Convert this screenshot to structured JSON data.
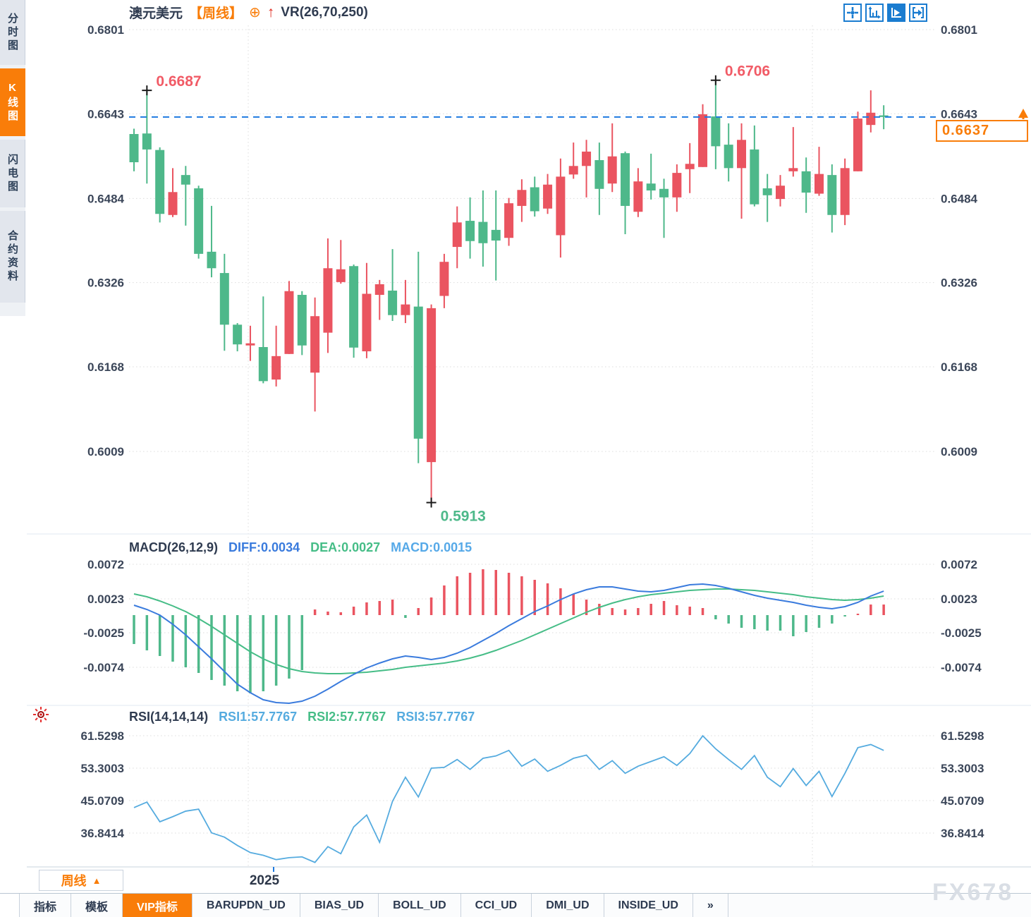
{
  "header": {
    "symbol": "澳元美元",
    "period_tag": "【周线】",
    "target_icon": "⊕",
    "up_arrow_icon": "↑",
    "vr_indicator": "VR(26,70,250)"
  },
  "sidebar": {
    "items": [
      {
        "label": "分时图",
        "active": false
      },
      {
        "label": "K线图",
        "active": true
      },
      {
        "label": "闪电图",
        "active": false
      },
      {
        "label": "合约资料",
        "active": false
      }
    ]
  },
  "toolbar_icons": [
    "pan-crosshair-icon",
    "axis-scale-icon",
    "axis-play-icon",
    "jump-latest-icon"
  ],
  "main_chart": {
    "y_ticks": [
      "0.6801",
      "0.6643",
      "0.6484",
      "0.6326",
      "0.6168",
      "0.6009"
    ],
    "x_tick": "2025",
    "last_price": "0.6637",
    "last_price_axis_label": "0.6643"
  },
  "macd_pane": {
    "title": "MACD(26,12,9)",
    "diff_label": "DIFF:0.0034",
    "dea_label": "DEA:0.0027",
    "macd_label": "MACD:0.0015",
    "y_ticks": [
      "0.0072",
      "0.0023",
      "-0.0025",
      "-0.0074"
    ]
  },
  "rsi_pane": {
    "title": "RSI(14,14,14)",
    "rsi1_label": "RSI1:57.7767",
    "rsi2_label": "RSI2:57.7767",
    "rsi3_label": "RSI3:57.7767",
    "y_ticks": [
      "61.5298",
      "53.3003",
      "45.0709",
      "36.8414"
    ]
  },
  "bottom": {
    "period_button": "周线",
    "period_arrow": "▲",
    "tabs": [
      {
        "label": "指标",
        "active": false
      },
      {
        "label": "模板",
        "active": false
      },
      {
        "label": "VIP指标",
        "active": true
      },
      {
        "label": "BARUPDN_UD",
        "active": false
      },
      {
        "label": "BIAS_UD",
        "active": false
      },
      {
        "label": "BOLL_UD",
        "active": false
      },
      {
        "label": "CCI_UD",
        "active": false
      },
      {
        "label": "DMI_UD",
        "active": false
      },
      {
        "label": "INSIDE_UD",
        "active": false
      },
      {
        "label": "»",
        "active": false
      }
    ],
    "watermark": "FX678"
  },
  "colors": {
    "up": "#ea5460",
    "down": "#4eb88a",
    "diff_line": "#3a7bdd",
    "dea_line": "#46bd87",
    "macd_label_blue": "#56a9e8",
    "rsi_line": "#55abdf",
    "accent_orange": "#f97d09",
    "dashed_line": "#1e7ae0",
    "icon_blue": "#1a7cd0",
    "annotation_red": "#f15b66",
    "annotation_green": "#4db98a",
    "tick_text": "#3b4659",
    "grid": "#dcdcdc"
  },
  "chart_data": [
    {
      "type": "candlestick",
      "title": "澳元美元 周线 (AUD/USD weekly)",
      "ylim": [
        0.5913,
        0.6801
      ],
      "y_ticks": [
        0.6801,
        0.6643,
        0.6484,
        0.6326,
        0.6168,
        0.6009
      ],
      "x_tick_labels": [
        "2025"
      ],
      "last_price": 0.6637,
      "annotations": [
        {
          "text": "0.6687",
          "index": 1,
          "anchor": "high",
          "color": "#f15b66"
        },
        {
          "text": "0.6706",
          "index": 45,
          "anchor": "high",
          "color": "#f15b66"
        },
        {
          "text": "0.5913",
          "index": 23,
          "anchor": "low",
          "color": "#4db98a"
        }
      ],
      "ohlc": [
        [
          0.6605,
          0.6615,
          0.6535,
          0.6552
        ],
        [
          0.6606,
          0.6687,
          0.6512,
          0.6576
        ],
        [
          0.6575,
          0.658,
          0.6439,
          0.6455
        ],
        [
          0.6453,
          0.6541,
          0.6449,
          0.6496
        ],
        [
          0.6528,
          0.6545,
          0.6433,
          0.651
        ],
        [
          0.6503,
          0.6508,
          0.6371,
          0.638
        ],
        [
          0.6384,
          0.647,
          0.6336,
          0.6353
        ],
        [
          0.6344,
          0.638,
          0.6198,
          0.6247
        ],
        [
          0.6247,
          0.625,
          0.6197,
          0.621
        ],
        [
          0.6208,
          0.6245,
          0.6179,
          0.6212
        ],
        [
          0.6205,
          0.63,
          0.6137,
          0.6141
        ],
        [
          0.6144,
          0.6245,
          0.6131,
          0.6188
        ],
        [
          0.6192,
          0.6329,
          0.6192,
          0.631
        ],
        [
          0.6303,
          0.631,
          0.619,
          0.6208
        ],
        [
          0.6157,
          0.6298,
          0.6084,
          0.6263
        ],
        [
          0.6232,
          0.6409,
          0.6194,
          0.6353
        ],
        [
          0.6327,
          0.6406,
          0.6324,
          0.6351
        ],
        [
          0.6357,
          0.636,
          0.6185,
          0.6204
        ],
        [
          0.6197,
          0.6363,
          0.6184,
          0.6305
        ],
        [
          0.6303,
          0.6331,
          0.6256,
          0.6323
        ],
        [
          0.6311,
          0.6389,
          0.6254,
          0.6265
        ],
        [
          0.6265,
          0.6331,
          0.625,
          0.6285
        ],
        [
          0.6281,
          0.6384,
          0.5987,
          0.6033
        ],
        [
          0.5989,
          0.6285,
          0.5913,
          0.6278
        ],
        [
          0.6301,
          0.638,
          0.6278,
          0.6365
        ],
        [
          0.6393,
          0.6469,
          0.6353,
          0.6439
        ],
        [
          0.6442,
          0.6486,
          0.6371,
          0.6404
        ],
        [
          0.644,
          0.6499,
          0.6356,
          0.64
        ],
        [
          0.6425,
          0.6499,
          0.633,
          0.6405
        ],
        [
          0.641,
          0.6485,
          0.6395,
          0.6475
        ],
        [
          0.647,
          0.652,
          0.644,
          0.65
        ],
        [
          0.6505,
          0.6525,
          0.645,
          0.646
        ],
        [
          0.6465,
          0.653,
          0.6455,
          0.651
        ],
        [
          0.6415,
          0.6559,
          0.6373,
          0.6525
        ],
        [
          0.6529,
          0.6589,
          0.6521,
          0.6545
        ],
        [
          0.6545,
          0.6594,
          0.6486,
          0.6572
        ],
        [
          0.6556,
          0.6589,
          0.6453,
          0.6502
        ],
        [
          0.6512,
          0.6625,
          0.6496,
          0.6563
        ],
        [
          0.6569,
          0.6572,
          0.6417,
          0.647
        ],
        [
          0.6459,
          0.6541,
          0.6449,
          0.6516
        ],
        [
          0.6512,
          0.6568,
          0.6482,
          0.6499
        ],
        [
          0.6502,
          0.6521,
          0.641,
          0.6486
        ],
        [
          0.6486,
          0.6548,
          0.6459,
          0.6532
        ],
        [
          0.6539,
          0.6588,
          0.6494,
          0.6549
        ],
        [
          0.6543,
          0.6661,
          0.6543,
          0.6642
        ],
        [
          0.6638,
          0.6706,
          0.6539,
          0.6582
        ],
        [
          0.6585,
          0.6625,
          0.6516,
          0.6541
        ],
        [
          0.6541,
          0.6625,
          0.6446,
          0.6594
        ],
        [
          0.6576,
          0.6621,
          0.6469,
          0.6473
        ],
        [
          0.6503,
          0.653,
          0.644,
          0.649
        ],
        [
          0.6483,
          0.6528,
          0.6469,
          0.6508
        ],
        [
          0.6535,
          0.6618,
          0.6525,
          0.6541
        ],
        [
          0.6535,
          0.6561,
          0.6457,
          0.6495
        ],
        [
          0.6493,
          0.6581,
          0.6489,
          0.653
        ],
        [
          0.6528,
          0.6548,
          0.642,
          0.6453
        ],
        [
          0.6453,
          0.6559,
          0.6434,
          0.6541
        ],
        [
          0.6535,
          0.6647,
          0.6535,
          0.6634
        ],
        [
          0.6622,
          0.6687,
          0.6608,
          0.6645
        ],
        [
          0.664,
          0.6659,
          0.6614,
          0.6637
        ]
      ]
    },
    {
      "type": "bar",
      "name": "MACD(26,12,9)",
      "diff": 0.0034,
      "dea": 0.0027,
      "macd": 0.0015,
      "y_ticks": [
        0.0072,
        0.0023,
        -0.0025,
        -0.0074
      ],
      "hist": [
        -0.0041,
        -0.005,
        -0.0058,
        -0.0066,
        -0.0074,
        -0.0082,
        -0.0092,
        -0.01,
        -0.0108,
        -0.0111,
        -0.0108,
        -0.01,
        -0.009,
        -0.0078,
        0.0008,
        0.0005,
        0.0004,
        0.0012,
        0.0018,
        0.002,
        0.0022,
        -0.0004,
        0.001,
        0.0025,
        0.0042,
        0.0055,
        0.006,
        0.0065,
        0.0064,
        0.006,
        0.0055,
        0.005,
        0.0045,
        0.0038,
        0.003,
        0.0022,
        0.0016,
        0.001,
        0.0008,
        0.001,
        0.0016,
        0.002,
        0.0014,
        0.0012,
        0.001,
        -0.0006,
        -0.0012,
        -0.0018,
        -0.002,
        -0.0022,
        -0.0022,
        -0.003,
        -0.0024,
        -0.0018,
        -0.0012,
        -0.0002,
        0.0002,
        0.0015,
        0.0015
      ],
      "diff_series": [
        0.0014,
        0.0008,
        0.0,
        -0.0013,
        -0.0028,
        -0.0045,
        -0.0062,
        -0.008,
        -0.0098,
        -0.011,
        -0.012,
        -0.0124,
        -0.0125,
        -0.0122,
        -0.0115,
        -0.0105,
        -0.0094,
        -0.0084,
        -0.0075,
        -0.0068,
        -0.0062,
        -0.0058,
        -0.006,
        -0.0063,
        -0.006,
        -0.0054,
        -0.0046,
        -0.0036,
        -0.0026,
        -0.0015,
        -0.0005,
        0.0005,
        0.0013,
        0.0022,
        0.003,
        0.0036,
        0.004,
        0.004,
        0.0037,
        0.0034,
        0.0033,
        0.0035,
        0.0039,
        0.0043,
        0.0044,
        0.0042,
        0.0038,
        0.0033,
        0.0028,
        0.0024,
        0.0021,
        0.0018,
        0.0014,
        0.0011,
        0.0009,
        0.0012,
        0.0018,
        0.0027,
        0.0034
      ],
      "dea_series": [
        0.003,
        0.0026,
        0.002,
        0.0013,
        0.0005,
        -0.0005,
        -0.0016,
        -0.0028,
        -0.004,
        -0.0052,
        -0.0062,
        -0.007,
        -0.0076,
        -0.008,
        -0.0082,
        -0.0083,
        -0.0083,
        -0.0082,
        -0.0081,
        -0.0079,
        -0.0077,
        -0.0074,
        -0.0072,
        -0.007,
        -0.0068,
        -0.0065,
        -0.0061,
        -0.0056,
        -0.005,
        -0.0043,
        -0.0036,
        -0.0028,
        -0.002,
        -0.0012,
        -0.0004,
        0.0004,
        0.0011,
        0.0017,
        0.0022,
        0.0026,
        0.0029,
        0.0031,
        0.0033,
        0.0035,
        0.0036,
        0.0037,
        0.0037,
        0.0036,
        0.0035,
        0.0033,
        0.0031,
        0.0029,
        0.0026,
        0.0024,
        0.0022,
        0.0021,
        0.0022,
        0.0024,
        0.0027
      ]
    },
    {
      "type": "line",
      "name": "RSI(14,14,14)",
      "rsi1": 57.7767,
      "rsi2": 57.7767,
      "rsi3": 57.7767,
      "y_ticks": [
        61.5298,
        53.3003,
        45.0709,
        36.8414
      ],
      "values": [
        43.3,
        44.7,
        39.7,
        41.0,
        42.4,
        42.9,
        36.9,
        35.8,
        33.7,
        31.9,
        31.2,
        30.1,
        30.6,
        30.8,
        29.4,
        33.4,
        31.6,
        38.4,
        41.4,
        34.5,
        44.9,
        51.0,
        46.0,
        53.3,
        53.5,
        55.5,
        53.0,
        55.8,
        56.4,
        57.8,
        53.8,
        55.6,
        52.5,
        54.0,
        55.8,
        56.6,
        53.0,
        55.2,
        52.0,
        53.8,
        55.0,
        56.2,
        54.0,
        57.0,
        61.5,
        58.2,
        55.5,
        53.0,
        56.5,
        51.0,
        48.6,
        53.2,
        48.9,
        52.5,
        46.1,
        52.0,
        58.5,
        59.3,
        57.8
      ]
    }
  ]
}
